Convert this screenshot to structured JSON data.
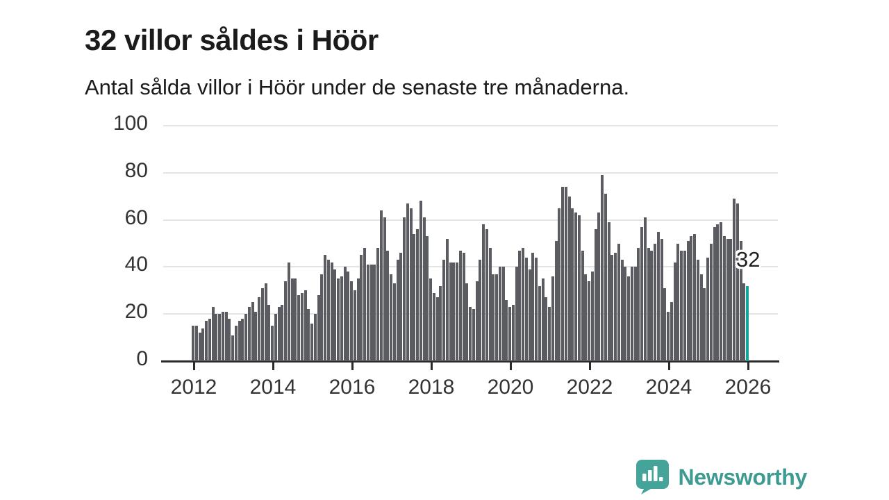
{
  "header": {
    "title": "32 villor såldes i Höör",
    "subtitle": "Antal sålda villor i Höör under de senaste tre månaderna."
  },
  "chart_data": {
    "type": "bar",
    "title": "32 villor såldes i Höör",
    "subtitle": "Antal sålda villor i Höör under de senaste tre månaderna.",
    "ylabel": "",
    "xlabel": "",
    "ylim": [
      0,
      100
    ],
    "y_ticks": [
      0,
      20,
      40,
      60,
      80,
      100
    ],
    "x_tick_labels": [
      "2012",
      "2014",
      "2016",
      "2018",
      "2020",
      "2022",
      "2024",
      "2026"
    ],
    "grid": "horizontal",
    "legend": "none",
    "bar_color": "#5b5b62",
    "highlight_color": "#10a49c",
    "frequency": "monthly",
    "series_by_year": [
      {
        "year": 2012,
        "values": [
          15,
          15,
          12,
          14,
          17,
          18,
          23,
          20,
          20,
          21,
          21,
          18
        ]
      },
      {
        "year": 2013,
        "values": [
          11,
          15,
          17,
          18,
          20,
          23,
          25,
          21,
          27,
          31,
          33,
          24
        ]
      },
      {
        "year": 2014,
        "values": [
          15,
          20,
          23,
          24,
          34,
          42,
          35,
          35,
          28,
          29,
          30,
          22
        ]
      },
      {
        "year": 2015,
        "values": [
          16,
          20,
          28,
          37,
          45,
          43,
          42,
          39,
          35,
          36,
          40,
          38
        ]
      },
      {
        "year": 2016,
        "values": [
          34,
          30,
          35,
          45,
          48,
          41,
          41,
          41,
          48,
          64,
          61,
          47
        ]
      },
      {
        "year": 2017,
        "values": [
          37,
          33,
          43,
          46,
          61,
          67,
          65,
          54,
          56,
          68,
          61,
          53
        ]
      },
      {
        "year": 2018,
        "values": [
          35,
          29,
          27,
          32,
          43,
          52,
          42,
          42,
          42,
          47,
          46,
          33
        ]
      },
      {
        "year": 2019,
        "values": [
          23,
          22,
          34,
          43,
          58,
          56,
          48,
          37,
          37,
          40,
          40,
          26
        ]
      },
      {
        "year": 2020,
        "values": [
          23,
          24,
          40,
          47,
          48,
          44,
          39,
          46,
          44,
          32,
          35,
          27
        ]
      },
      {
        "year": 2021,
        "values": [
          23,
          36,
          51,
          65,
          74,
          74,
          70,
          65,
          63,
          62,
          47,
          37
        ]
      },
      {
        "year": 2022,
        "values": [
          34,
          38,
          56,
          63,
          79,
          71,
          59,
          45,
          46,
          50,
          43,
          40
        ]
      },
      {
        "year": 2023,
        "values": [
          36,
          40,
          40,
          48,
          57,
          61,
          48,
          47,
          50,
          55,
          52,
          31
        ]
      },
      {
        "year": 2024,
        "values": [
          21,
          25,
          42,
          50,
          47,
          47,
          51,
          53,
          54,
          43,
          37,
          31
        ]
      },
      {
        "year": 2025,
        "values": [
          44,
          50,
          57,
          58,
          59,
          53,
          52,
          52,
          69,
          67,
          51,
          33
        ]
      },
      {
        "year": 2026,
        "values": [
          32
        ]
      }
    ],
    "highlight": {
      "label": "32",
      "value": 32,
      "position": "last-bar"
    }
  },
  "footer": {
    "brand": "Newsworthy"
  },
  "colors": {
    "background": "#ffffff",
    "text": "#1b1b1b",
    "axis_text": "#333333",
    "gridline": "#e4e4e4",
    "axis_line": "#2b2b2b",
    "bar": "#5b5b62",
    "highlight_bar": "#10a49c",
    "brand_teal": "#3d9b91",
    "brand_icon_teal": "#45a49a"
  }
}
